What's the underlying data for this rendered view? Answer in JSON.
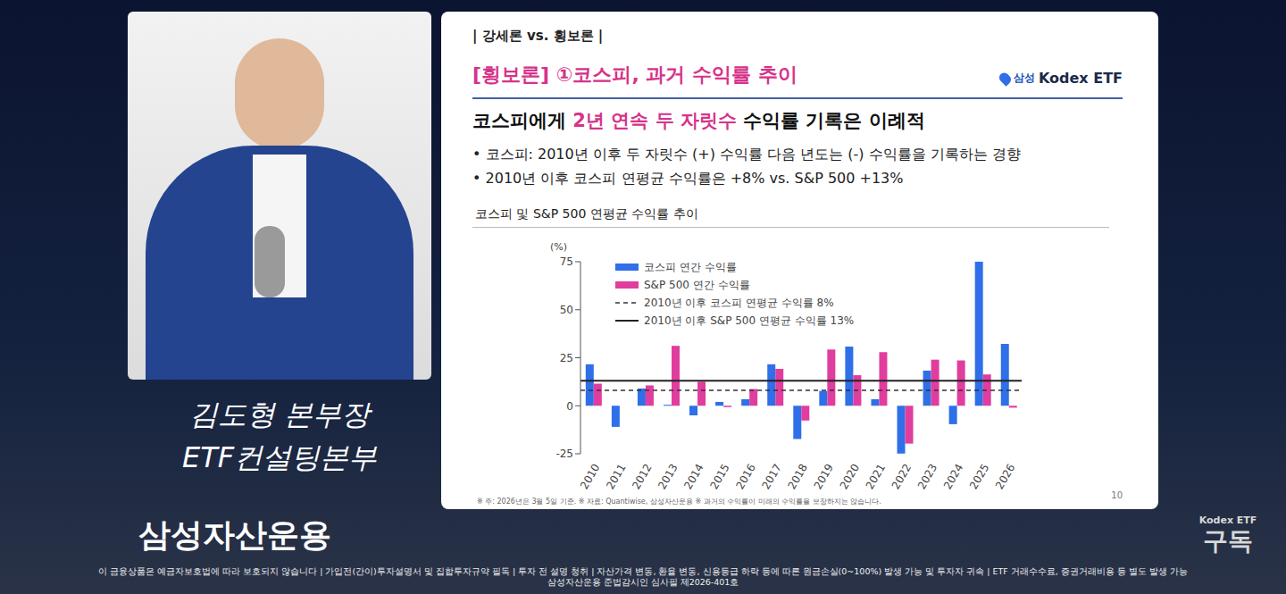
{
  "chart_data": {
    "type": "bar",
    "title": "코스피 및 S&P 500 연평균 수익률 추이",
    "ylabel": "(%)",
    "categories": [
      "2010",
      "2011",
      "2012",
      "2013",
      "2014",
      "2015",
      "2016",
      "2017",
      "2018",
      "2019",
      "2020",
      "2021",
      "2022",
      "2023",
      "2024",
      "2025",
      "2026"
    ],
    "series": [
      {
        "name": "코스피 연간 수익률",
        "color": "#2f6fe8",
        "values": [
          21.6,
          -11,
          9,
          0.5,
          -5,
          2,
          3.4,
          21.6,
          -17.3,
          7.7,
          30.8,
          3.4,
          -24.9,
          18.3,
          -9.6,
          75,
          32.2
        ]
      },
      {
        "name": "S&P 500 연간 수익률",
        "color": "#e03d9e",
        "values": [
          11.5,
          0,
          10.6,
          31.2,
          12.5,
          -0.7,
          8.7,
          19.2,
          -7.7,
          29.3,
          15.9,
          27.9,
          -19.7,
          24,
          23.6,
          16.3,
          -1
        ]
      }
    ],
    "reference_lines": [
      {
        "name": "2010년 이후 코스피 연평균 수익률  8%",
        "value": 8,
        "color": "#333333",
        "line_style": "dashed"
      },
      {
        "name": "2010년 이후 S&P 500 연평균 수익률 13%",
        "value": 13,
        "color": "#222222",
        "line_style": "solid"
      }
    ],
    "ylim": [
      -25,
      75
    ],
    "yticks": [
      -25,
      0,
      25,
      50,
      75
    ],
    "grid": false,
    "legend": "upper left"
  },
  "slide": {
    "section": "| 강세론 vs. 횡보론 |",
    "title": "[횡보론] ①코스피, 과거 수익률 추이",
    "logo": {
      "brand": "삼성",
      "product": "Kodex ETF"
    },
    "headline": {
      "before": "코스피에게 ",
      "highlight": "2년 연속 두 자릿수",
      "after": " 수익률 기록은 이례적"
    },
    "bullets": [
      "• 코스피: 2010년 이후 두 자릿수 (+) 수익률 다음 년도는 (-) 수익률을 기록하는 경향",
      "• 2010년 이후 코스피 연평균 수익률은 +8% vs. S&P 500 +13%"
    ],
    "footnote": "※ 주: 2026년은 3월 5일 기준. ※ 자료: Quantiwise, 삼성자산운용 ※ 과거의 수익률이 미래의 수익률을 보장하지는 않습니다.",
    "page": "10"
  },
  "video": {
    "speaker": [
      "김도형 본부장",
      "ETF컨설팅본부"
    ],
    "company": "삼성자산운용",
    "subscribe": [
      "Kodex ETF",
      "구독"
    ],
    "disclaimer": [
      "이 금융상품은 예금자보호법에 따라 보호되지 않습니다 | 가입전(간이)투자설명서 및 집합투자규약 필독 | 투자 전 설명 청취 | 자산가격 변동, 환율 변동, 신용등급 하락 등에 따른 원금손실(0~100%) 발생 가능 및 투자자 귀속 | ETF 거래수수료, 증권거래비용 등 별도 발생 가능",
      "삼성자산운용 준법감시인 심사필 제2026-401호"
    ]
  }
}
